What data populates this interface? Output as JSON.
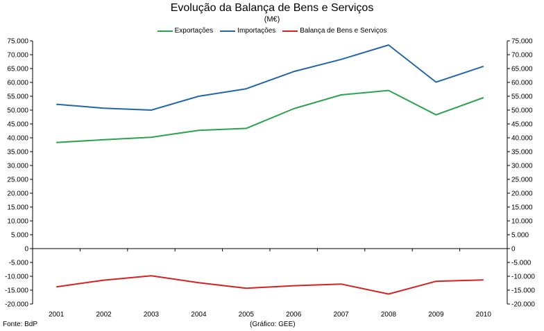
{
  "chart_data": {
    "type": "line",
    "title": "Evolução da Balança de Bens e Serviços",
    "subtitle": "(M€)",
    "categories": [
      "2001",
      "2002",
      "2003",
      "2004",
      "2005",
      "2006",
      "2007",
      "2008",
      "2009",
      "2010"
    ],
    "series": [
      {
        "name": "Exportações",
        "color": "#2ca24b",
        "values": [
          38300,
          39300,
          40200,
          42700,
          43400,
          50500,
          55500,
          57100,
          48300,
          54500
        ]
      },
      {
        "name": "Importações",
        "color": "#2166a8",
        "values": [
          52100,
          50700,
          50000,
          55000,
          57700,
          63900,
          68300,
          73500,
          60100,
          65800
        ]
      },
      {
        "name": "Balança de Bens e Serviços",
        "color": "#d7201f",
        "values": [
          -13800,
          -11400,
          -9800,
          -12300,
          -14300,
          -13400,
          -12800,
          -16400,
          -11800,
          -11300
        ]
      }
    ],
    "ylim": [
      -20000,
      75000
    ],
    "yticks": [
      "75.000",
      "70.000",
      "65.000",
      "60.000",
      "55.000",
      "50.000",
      "45.000",
      "40.000",
      "35.000",
      "30.000",
      "25.000",
      "20.000",
      "15.000",
      "10.000",
      "5.000",
      "0",
      "-5.000",
      "-10.000",
      "-15.000",
      "-20.000"
    ],
    "ytick_values": [
      75000,
      70000,
      65000,
      60000,
      55000,
      50000,
      45000,
      40000,
      35000,
      30000,
      25000,
      20000,
      15000,
      10000,
      5000,
      0,
      -5000,
      -10000,
      -15000,
      -20000
    ],
    "legend_position": "top-center",
    "grid": false
  },
  "footer": {
    "source": "Fonte: BdP",
    "credit": "(Gráfico: GEE)"
  }
}
